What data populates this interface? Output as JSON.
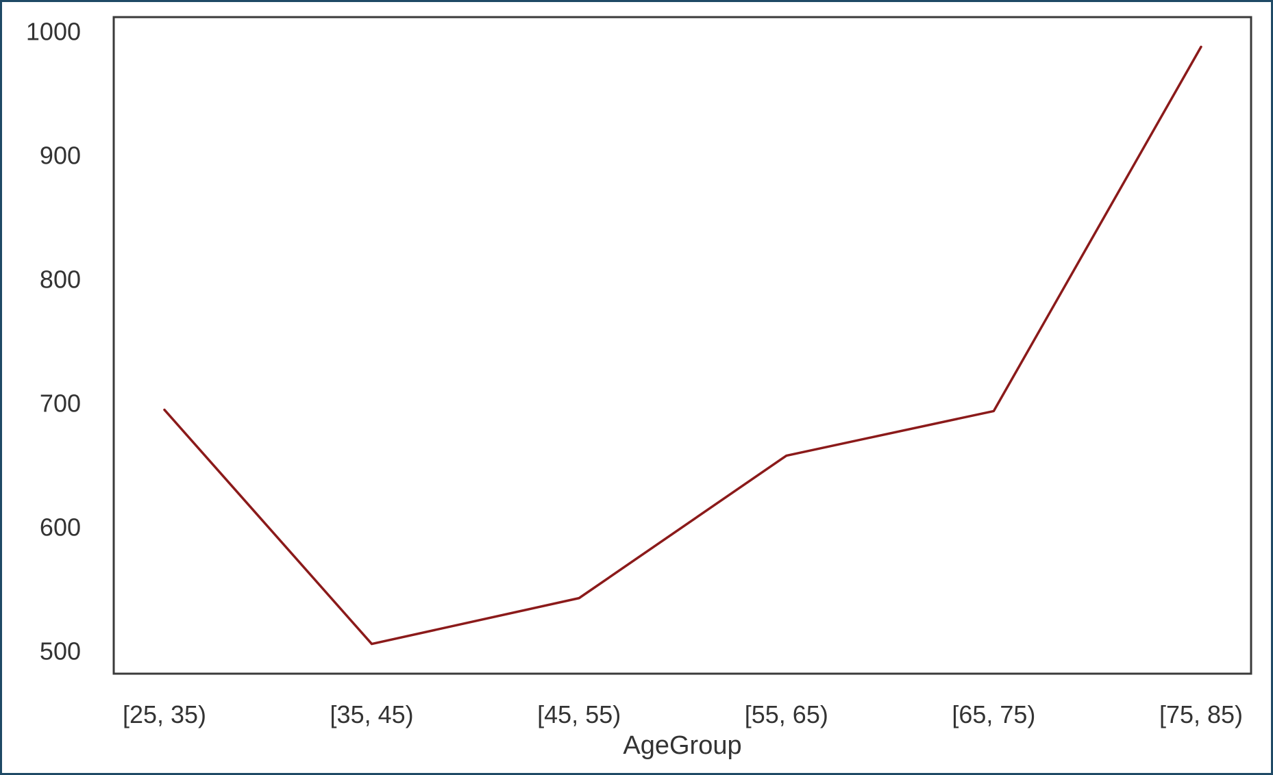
{
  "chart_data": {
    "type": "line",
    "categories": [
      "[25, 35)",
      "[35, 45)",
      "[45, 55)",
      "[55, 65)",
      "[65, 75)",
      "[75, 85)"
    ],
    "series": [
      {
        "values": [
          695,
          506,
          543,
          658,
          694,
          988
        ]
      }
    ],
    "xlabel": "AgeGroup",
    "ylabel": "",
    "yticks": [
      500,
      600,
      700,
      800,
      900,
      1000
    ],
    "ylim": [
      482,
      1012
    ],
    "grid": false,
    "line_color": "#8b1a1a",
    "frame_color": "#3a3a3a"
  }
}
